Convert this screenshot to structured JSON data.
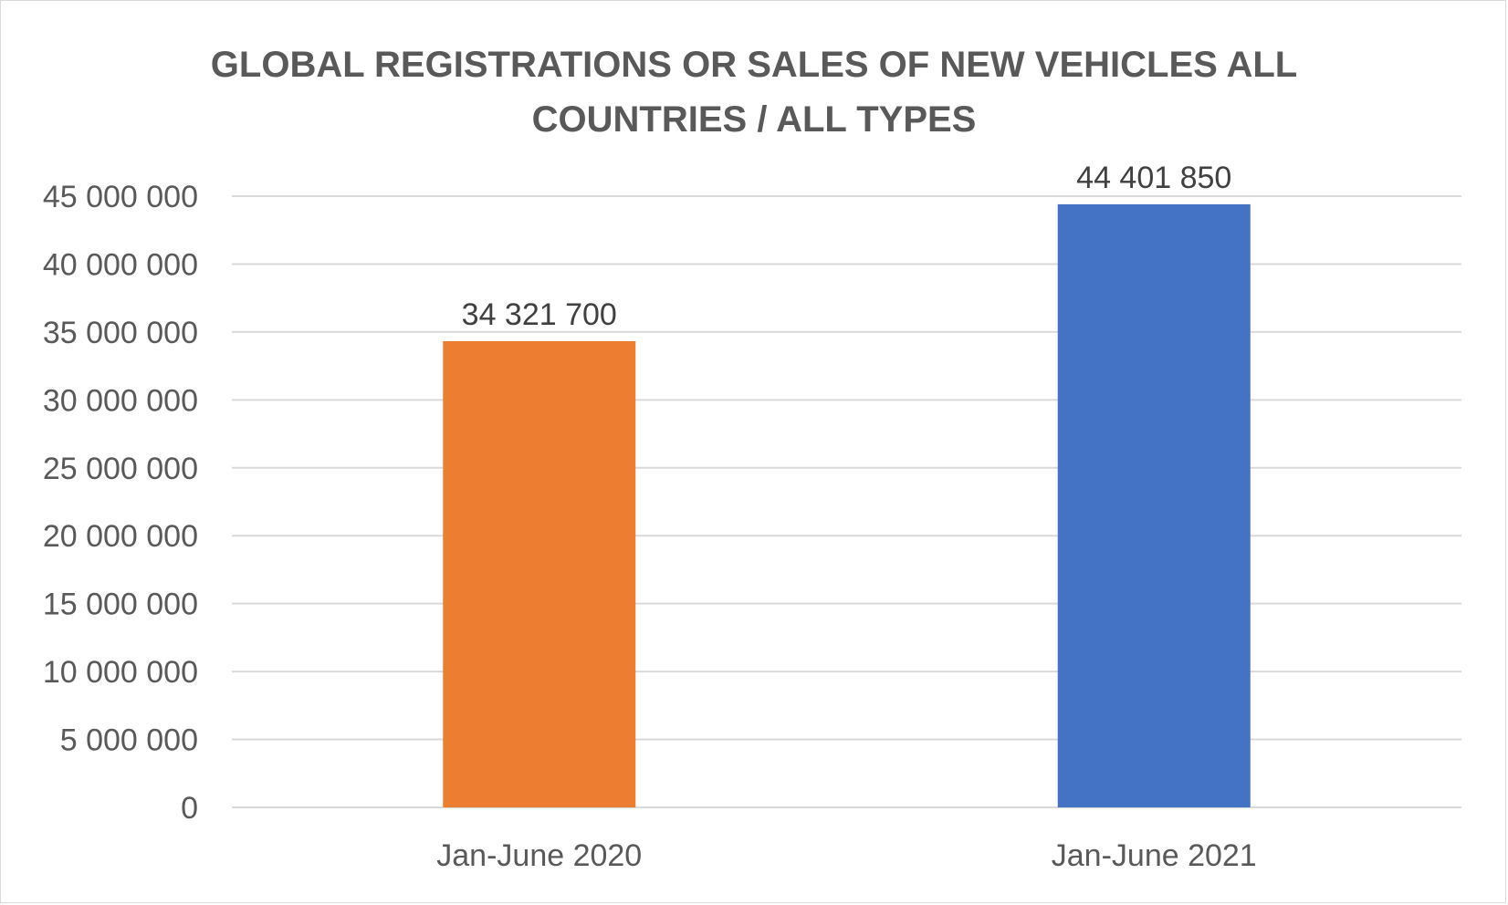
{
  "chart_data": {
    "type": "bar",
    "title": "GLOBAL REGISTRATIONS OR SALES OF NEW VEHICLES ALL COUNTRIES / ALL TYPES",
    "title_lines": [
      "GLOBAL REGISTRATIONS OR SALES OF NEW VEHICLES ALL",
      "COUNTRIES / ALL TYPES"
    ],
    "categories": [
      "Jan-June 2020",
      "Jan-June 2021"
    ],
    "values": [
      34321700,
      44401850
    ],
    "data_labels": [
      "34 321 700",
      "44 401 850"
    ],
    "bar_colors": [
      "#ED7D31",
      "#4472C4"
    ],
    "ylim": [
      0,
      45000000
    ],
    "yticks": [
      0,
      5000000,
      10000000,
      15000000,
      20000000,
      25000000,
      30000000,
      35000000,
      40000000,
      45000000
    ],
    "ytick_labels": [
      "0",
      "5 000 000",
      "10 000 000",
      "15 000 000",
      "20 000 000",
      "25 000 000",
      "30 000 000",
      "35 000 000",
      "40 000 000",
      "45 000 000"
    ],
    "xlabel": "",
    "ylabel": "",
    "grid": true,
    "legend": "none"
  }
}
